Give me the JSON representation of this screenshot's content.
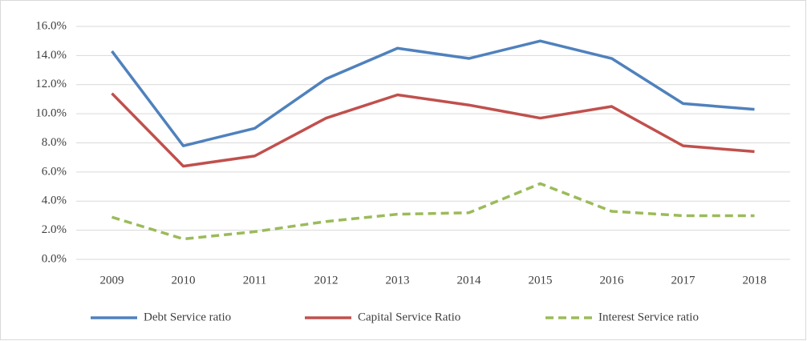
{
  "chart_data": {
    "type": "line",
    "categories": [
      "2009",
      "2010",
      "2011",
      "2012",
      "2013",
      "2014",
      "2015",
      "2016",
      "2017",
      "2018"
    ],
    "series": [
      {
        "name": "Debt Service ratio",
        "color": "#4f81bd",
        "values": [
          14.3,
          7.8,
          9.0,
          12.4,
          14.5,
          13.8,
          15.0,
          13.8,
          10.7,
          10.3
        ]
      },
      {
        "name": "Capital Service Ratio",
        "color": "#c0504d",
        "values": [
          11.4,
          6.4,
          7.1,
          9.7,
          11.3,
          10.6,
          9.7,
          10.5,
          7.8,
          7.4
        ]
      },
      {
        "name": "Interest Service ratio",
        "color": "#9bbb59",
        "dashed": true,
        "values": [
          2.9,
          1.4,
          1.9,
          2.6,
          3.1,
          3.2,
          5.2,
          3.3,
          3.0,
          3.0
        ]
      }
    ],
    "ylim": [
      0,
      16
    ],
    "yticks": [
      {
        "value": 0,
        "label": "0.0%"
      },
      {
        "value": 2,
        "label": "2.0%"
      },
      {
        "value": 4,
        "label": "4.0%"
      },
      {
        "value": 6,
        "label": "6.0%"
      },
      {
        "value": 8,
        "label": "8.0%"
      },
      {
        "value": 10,
        "label": "10.0%"
      },
      {
        "value": 12,
        "label": "12.0%"
      },
      {
        "value": 14,
        "label": "14.0%"
      },
      {
        "value": 16,
        "label": "16.0%"
      }
    ],
    "grid": true,
    "legend": "bottom"
  }
}
